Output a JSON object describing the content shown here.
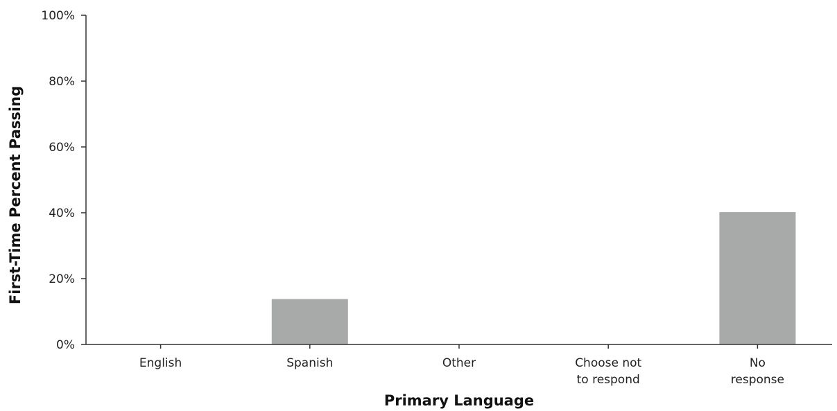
{
  "chart_data": {
    "type": "bar",
    "categories": [
      [
        "English"
      ],
      [
        "Spanish"
      ],
      [
        "Other"
      ],
      [
        "Choose not",
        "to respond"
      ],
      [
        "No",
        "response"
      ]
    ],
    "values": [
      0,
      13.8,
      0,
      0,
      40.2
    ],
    "xlabel": "Primary Language",
    "ylabel": "First-Time Percent Passing",
    "ylim": [
      0,
      100
    ],
    "yticks": [
      0,
      20,
      40,
      60,
      80,
      100
    ],
    "ytick_labels": [
      "0%",
      "20%",
      "40%",
      "60%",
      "80%",
      "100%"
    ],
    "bar_color": "#a7aaa9",
    "grid": false,
    "legend": "none"
  }
}
